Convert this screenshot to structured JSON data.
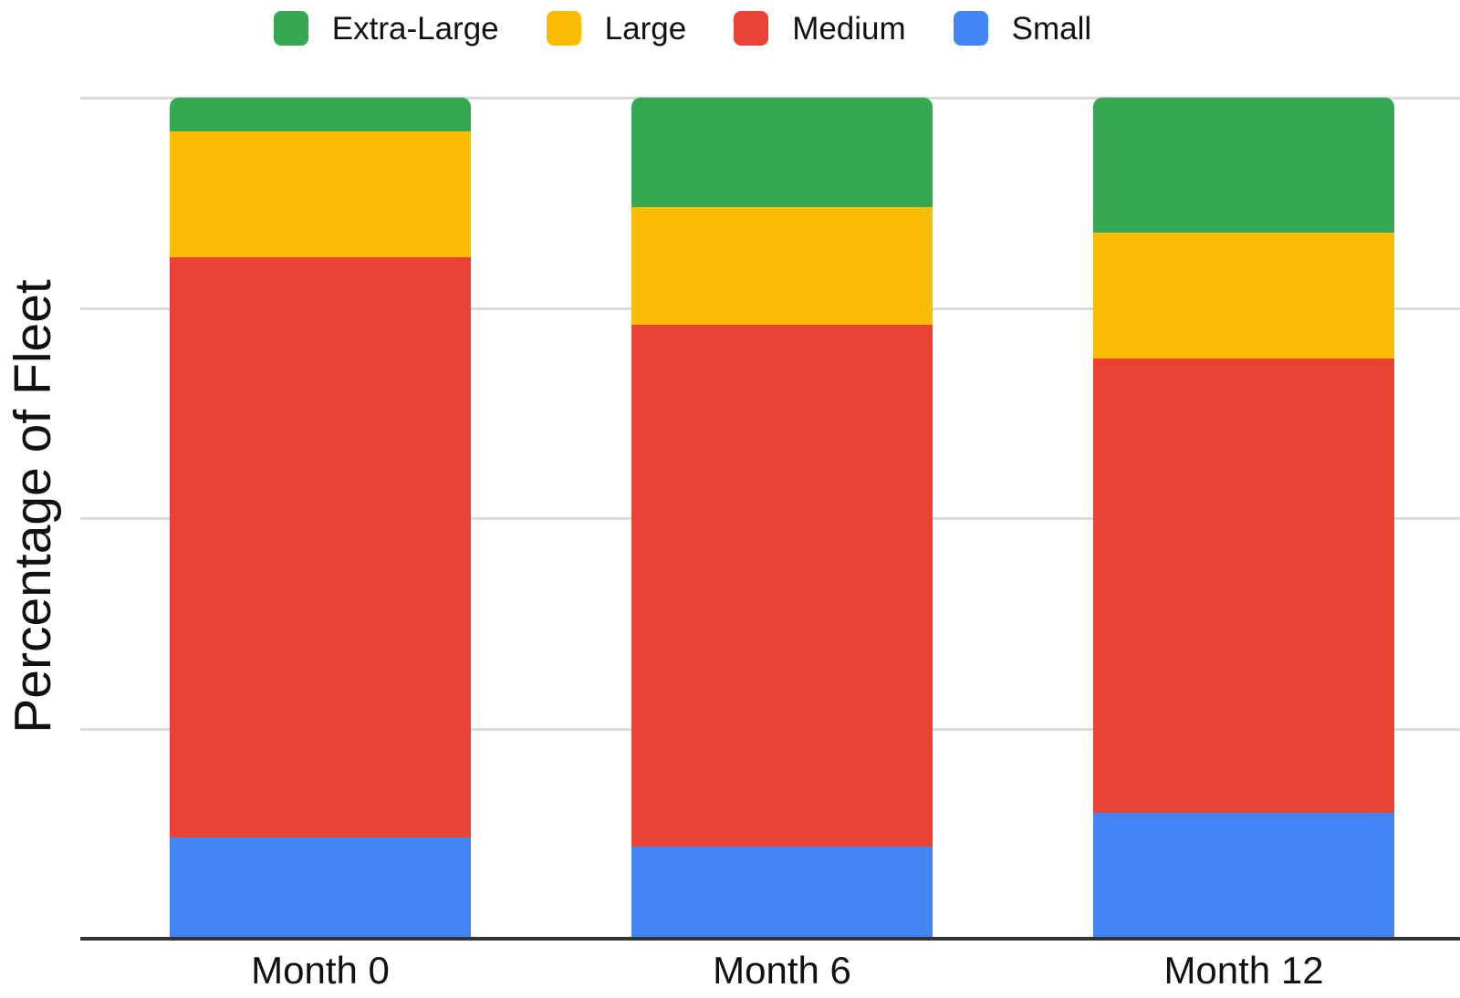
{
  "chart_data": {
    "type": "bar",
    "subtype": "stacked-100",
    "title": "",
    "ylabel": "Percentage of Fleet",
    "xlabel": "",
    "categories": [
      "Month 0",
      "Month 6",
      "Month 12"
    ],
    "series": [
      {
        "name": "Small",
        "color": "#4285F4",
        "values": [
          12,
          11,
          15
        ]
      },
      {
        "name": "Medium",
        "color": "#EA4335",
        "values": [
          69,
          62,
          54
        ]
      },
      {
        "name": "Large",
        "color": "#FBBC04",
        "values": [
          15,
          14,
          15
        ]
      },
      {
        "name": "Extra-Large",
        "color": "#34A853",
        "values": [
          4,
          13,
          16
        ]
      }
    ],
    "stack_order_bottom_to_top": [
      "Small",
      "Medium",
      "Large",
      "Extra-Large"
    ],
    "ylim": [
      0,
      100
    ],
    "y_units": "percent",
    "y_tick_labels_shown": false,
    "gridlines": {
      "show": true,
      "interval_pct": 25,
      "color": "#d9d9d9"
    },
    "axis_color": "#333333",
    "text_color": "#111111",
    "background": "#ffffff",
    "legend": {
      "position": "top",
      "items": [
        {
          "label": "Extra-Large",
          "color": "#34A853",
          "swatch": "rounded-square-icon"
        },
        {
          "label": "Large",
          "color": "#FBBC04",
          "swatch": "rounded-square-icon"
        },
        {
          "label": "Medium",
          "color": "#EA4335",
          "swatch": "rounded-square-icon"
        },
        {
          "label": "Small",
          "color": "#4285F4",
          "swatch": "rounded-square-icon"
        }
      ]
    }
  }
}
